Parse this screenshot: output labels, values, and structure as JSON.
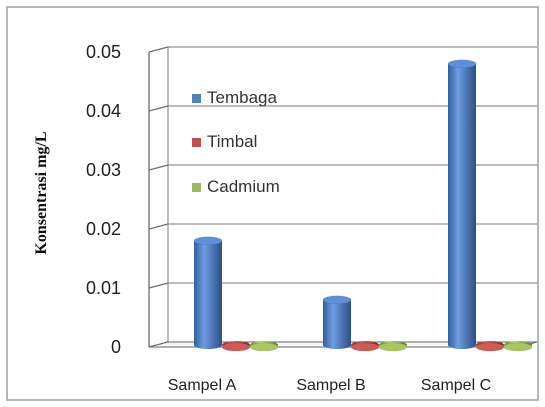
{
  "chart_data": {
    "type": "bar",
    "title": "",
    "xlabel": "",
    "ylabel": "Konsentrasi mg/L",
    "categories": [
      "Sampel A",
      "Sampel B",
      "Sampel C"
    ],
    "series": [
      {
        "name": "Tembaga",
        "values": [
          0.018,
          0.008,
          0.048
        ],
        "color": "#4f81bd"
      },
      {
        "name": "Timbal",
        "values": [
          0.0,
          0.0,
          0.0
        ],
        "color": "#c0504d"
      },
      {
        "name": "Cadmium",
        "values": [
          0.0,
          0.0,
          0.0
        ],
        "color": "#9bbb59"
      }
    ],
    "ylim": [
      0,
      0.05
    ],
    "yticks": [
      "0",
      "0.01",
      "0.02",
      "0.03",
      "0.04",
      "0.05"
    ],
    "grid": true,
    "legend_position": "inside-top-left",
    "style": "3d-cylinder"
  }
}
